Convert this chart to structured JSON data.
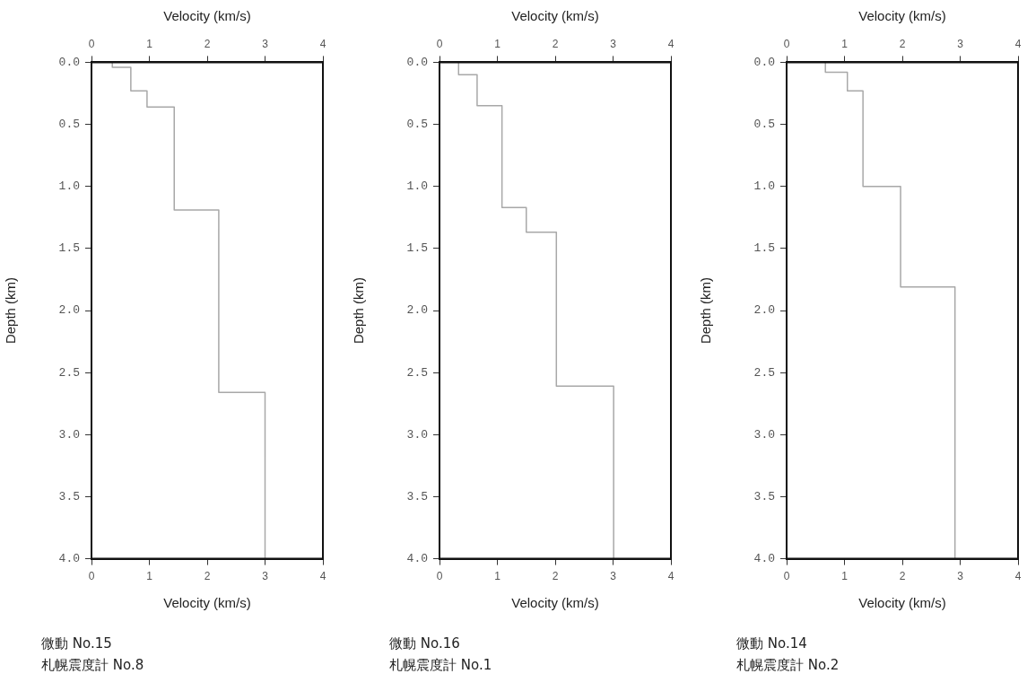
{
  "chart_data": [
    {
      "type": "line",
      "xlabel": "Velocity (km/s)",
      "x2label": "Velocity (km/s)",
      "ylabel": "Depth (km)",
      "xlim": [
        0,
        4
      ],
      "xticks": [
        0,
        1,
        2,
        3,
        4
      ],
      "x2lim": [
        0,
        4
      ],
      "x2ticks": [
        0,
        1,
        2,
        3,
        4
      ],
      "ylim": [
        4,
        0
      ],
      "yticks": [
        {
          "value": 0,
          "label": "0.0"
        },
        {
          "value": 0.5,
          "label": "0.5"
        },
        {
          "value": 1,
          "label": "1.0"
        },
        {
          "value": 1.5,
          "label": "1.5"
        },
        {
          "value": 2,
          "label": "2.0"
        },
        {
          "value": 2.5,
          "label": "2.5"
        },
        {
          "value": 3,
          "label": "3.0"
        },
        {
          "value": 3.5,
          "label": "3.5"
        },
        {
          "value": 4,
          "label": "4.0"
        }
      ],
      "grid": false,
      "legend": false,
      "marker": "none",
      "line_style": "solid",
      "series": [
        {
          "color": "#a8a8a8",
          "x": [
            0.36,
            0.36,
            0.68,
            0.68,
            0.96,
            0.96,
            1.43,
            1.43,
            2.2,
            2.2,
            3.0,
            3.0
          ],
          "values": [
            0,
            0.04,
            0.04,
            0.23,
            0.23,
            0.36,
            0.36,
            1.19,
            1.19,
            2.66,
            2.66,
            4.0
          ]
        }
      ],
      "annotations": [
        "微動 No.15",
        "札幌震度計 No.8"
      ]
    },
    {
      "type": "line",
      "xlabel": "Velocity (km/s)",
      "x2label": "Velocity (km/s)",
      "ylabel": "Depth (km)",
      "xlim": [
        0,
        4
      ],
      "xticks": [
        0,
        1,
        2,
        3,
        4
      ],
      "x2lim": [
        0,
        4
      ],
      "x2ticks": [
        0,
        1,
        2,
        3,
        4
      ],
      "ylim": [
        4,
        0
      ],
      "yticks": [
        {
          "value": 0,
          "label": "0.0"
        },
        {
          "value": 0.5,
          "label": "0.5"
        },
        {
          "value": 1,
          "label": "1.0"
        },
        {
          "value": 1.5,
          "label": "1.5"
        },
        {
          "value": 2,
          "label": "2.0"
        },
        {
          "value": 2.5,
          "label": "2.5"
        },
        {
          "value": 3,
          "label": "3.0"
        },
        {
          "value": 3.5,
          "label": "3.5"
        },
        {
          "value": 4,
          "label": "4.0"
        }
      ],
      "grid": false,
      "legend": false,
      "marker": "none",
      "line_style": "solid",
      "series": [
        {
          "color": "#a8a8a8",
          "x": [
            0.33,
            0.33,
            0.65,
            0.65,
            1.08,
            1.08,
            1.5,
            1.5,
            2.02,
            2.02,
            3.01,
            3.01
          ],
          "values": [
            0,
            0.1,
            0.1,
            0.35,
            0.35,
            1.17,
            1.17,
            1.37,
            1.37,
            2.61,
            2.61,
            4.0
          ]
        }
      ],
      "annotations": [
        "微動 No.16",
        "札幌震度計 No.1"
      ]
    },
    {
      "type": "line",
      "xlabel": "Velocity (km/s)",
      "x2label": "Velocity (km/s)",
      "ylabel": "Depth (km)",
      "xlim": [
        0,
        4
      ],
      "xticks": [
        0,
        1,
        2,
        3,
        4
      ],
      "x2lim": [
        0,
        4
      ],
      "x2ticks": [
        0,
        1,
        2,
        3,
        4
      ],
      "ylim": [
        4,
        0
      ],
      "yticks": [
        {
          "value": 0,
          "label": "0.0"
        },
        {
          "value": 0.5,
          "label": "0.5"
        },
        {
          "value": 1,
          "label": "1.0"
        },
        {
          "value": 1.5,
          "label": "1.5"
        },
        {
          "value": 2,
          "label": "2.0"
        },
        {
          "value": 2.5,
          "label": "2.5"
        },
        {
          "value": 3,
          "label": "3.0"
        },
        {
          "value": 3.5,
          "label": "3.5"
        },
        {
          "value": 4,
          "label": "4.0"
        }
      ],
      "grid": false,
      "legend": false,
      "marker": "none",
      "line_style": "solid",
      "series": [
        {
          "color": "#a8a8a8",
          "x": [
            0.67,
            0.67,
            1.05,
            1.05,
            1.32,
            1.32,
            1.97,
            1.97,
            2.91,
            2.91
          ],
          "values": [
            0,
            0.08,
            0.08,
            0.23,
            0.23,
            1.0,
            1.0,
            1.81,
            1.81,
            4.0
          ]
        }
      ],
      "annotations": [
        "微動 No.14",
        "札幌震度計 No.2"
      ]
    }
  ]
}
